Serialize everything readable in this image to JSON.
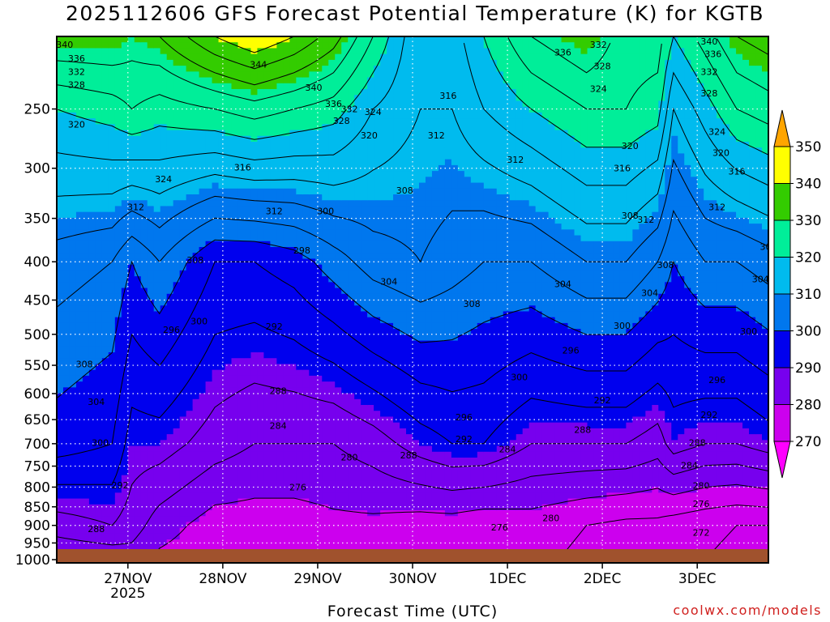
{
  "chart_data": {
    "type": "heatmap",
    "title": "2025112606 GFS Forecast Potential Temperature (K) for KGTB",
    "xlabel": "Forecast Time (UTC)",
    "ylabel": "",
    "x_ticks": [
      {
        "label": "27NOV",
        "sublabel": "2025",
        "hours": 18
      },
      {
        "label": "28NOV",
        "sublabel": "",
        "hours": 42
      },
      {
        "label": "29NOV",
        "sublabel": "",
        "hours": 66
      },
      {
        "label": "30NOV",
        "sublabel": "",
        "hours": 90
      },
      {
        "label": "1DEC",
        "sublabel": "",
        "hours": 114
      },
      {
        "label": "2DEC",
        "sublabel": "",
        "hours": 138
      },
      {
        "label": "3DEC",
        "sublabel": "",
        "hours": 162
      }
    ],
    "xlim_hours": [
      0,
      180
    ],
    "y_ticks": [
      "250",
      "300",
      "350",
      "400",
      "450",
      "500",
      "550",
      "600",
      "650",
      "700",
      "750",
      "800",
      "850",
      "900",
      "950",
      "1000"
    ],
    "y_tick_values": [
      250,
      300,
      350,
      400,
      450,
      500,
      550,
      600,
      650,
      700,
      750,
      800,
      850,
      900,
      950,
      1000
    ],
    "ylim_hpa": [
      1010,
      200
    ],
    "y_scale": "log",
    "grid": true,
    "colorbar": {
      "labels": [
        "350",
        "340",
        "330",
        "320",
        "310",
        "300",
        "290",
        "280",
        "270"
      ],
      "colors": [
        "#ffa500",
        "#ffff00",
        "#33cc00",
        "#00ee99",
        "#00bbee",
        "#0077ee",
        "#0000ee",
        "#7700ee",
        "#cc00ee",
        "#ff00ff"
      ],
      "min": 270,
      "max": 350,
      "step": 10,
      "extend": "both"
    },
    "contour_interval_K": 4,
    "profile_anchors_hours": [
      0,
      14,
      19,
      26,
      40,
      50,
      60,
      70,
      80,
      92,
      100,
      108,
      120,
      134,
      144,
      152,
      156,
      164,
      172,
      180
    ],
    "theta_at_1000hpa": [
      280,
      281,
      282,
      279,
      277,
      277,
      277,
      278,
      278,
      277,
      277,
      276,
      277,
      275,
      274,
      274,
      273,
      272,
      271,
      271
    ],
    "tropopause_theta_k": [
      332,
      332,
      330,
      332,
      340,
      344,
      340,
      334,
      324,
      312,
      314,
      320,
      328,
      332,
      326,
      326,
      320,
      326,
      332,
      334
    ],
    "theta_250hpa": [
      320,
      322,
      324,
      322,
      324,
      326,
      324,
      322,
      316,
      312,
      312,
      316,
      320,
      324,
      324,
      322,
      312,
      318,
      324,
      326
    ],
    "theta_400hpa": [
      306,
      304,
      300,
      304,
      296,
      296,
      298,
      302,
      306,
      308,
      306,
      304,
      304,
      308,
      308,
      304,
      300,
      304,
      304,
      306
    ],
    "theta_700hpa": [
      298,
      296,
      290,
      290,
      286,
      284,
      284,
      284,
      286,
      290,
      292,
      292,
      288,
      288,
      288,
      286,
      290,
      288,
      288,
      290
    ],
    "theta_900hpa": [
      286,
      288,
      286,
      282,
      278,
      276,
      276,
      276,
      276,
      276,
      276,
      276,
      278,
      276,
      274,
      274,
      274,
      272,
      272,
      272
    ],
    "contour_labels": [
      {
        "text": "340",
        "hours": 2,
        "hpa": 205
      },
      {
        "text": "336",
        "hours": 5,
        "hpa": 214
      },
      {
        "text": "332",
        "hours": 5,
        "hpa": 223
      },
      {
        "text": "328",
        "hours": 5,
        "hpa": 232
      },
      {
        "text": "320",
        "hours": 5,
        "hpa": 262
      },
      {
        "text": "324",
        "hours": 27,
        "hpa": 310
      },
      {
        "text": "316",
        "hours": 47,
        "hpa": 299
      },
      {
        "text": "312",
        "hours": 20,
        "hpa": 338
      },
      {
        "text": "312",
        "hours": 55,
        "hpa": 342
      },
      {
        "text": "300",
        "hours": 68,
        "hpa": 342
      },
      {
        "text": "344",
        "hours": 51,
        "hpa": 218
      },
      {
        "text": "340",
        "hours": 65,
        "hpa": 234
      },
      {
        "text": "336",
        "hours": 70,
        "hpa": 246
      },
      {
        "text": "332",
        "hours": 74,
        "hpa": 250
      },
      {
        "text": "328",
        "hours": 72,
        "hpa": 259
      },
      {
        "text": "324",
        "hours": 80,
        "hpa": 252
      },
      {
        "text": "320",
        "hours": 79,
        "hpa": 271
      },
      {
        "text": "316",
        "hours": 99,
        "hpa": 240
      },
      {
        "text": "312",
        "hours": 96,
        "hpa": 271
      },
      {
        "text": "312",
        "hours": 116,
        "hpa": 292
      },
      {
        "text": "308",
        "hours": 88,
        "hpa": 321
      },
      {
        "text": "308",
        "hours": 35,
        "hpa": 398
      },
      {
        "text": "298",
        "hours": 62,
        "hpa": 386
      },
      {
        "text": "304",
        "hours": 84,
        "hpa": 425
      },
      {
        "text": "300",
        "hours": 36,
        "hpa": 480
      },
      {
        "text": "296",
        "hours": 29,
        "hpa": 493
      },
      {
        "text": "292",
        "hours": 55,
        "hpa": 488
      },
      {
        "text": "308",
        "hours": 105,
        "hpa": 455
      },
      {
        "text": "300",
        "hours": 117,
        "hpa": 570
      },
      {
        "text": "304",
        "hours": 128,
        "hpa": 428
      },
      {
        "text": "308",
        "hours": 145,
        "hpa": 347
      },
      {
        "text": "336",
        "hours": 128,
        "hpa": 210
      },
      {
        "text": "332",
        "hours": 137,
        "hpa": 205
      },
      {
        "text": "328",
        "hours": 138,
        "hpa": 219
      },
      {
        "text": "324",
        "hours": 137,
        "hpa": 235
      },
      {
        "text": "320",
        "hours": 145,
        "hpa": 280
      },
      {
        "text": "316",
        "hours": 143,
        "hpa": 300
      },
      {
        "text": "312",
        "hours": 149,
        "hpa": 351
      },
      {
        "text": "308",
        "hours": 154,
        "hpa": 404
      },
      {
        "text": "304",
        "hours": 150,
        "hpa": 440
      },
      {
        "text": "300",
        "hours": 143,
        "hpa": 487
      },
      {
        "text": "296",
        "hours": 130,
        "hpa": 525
      },
      {
        "text": "292",
        "hours": 138,
        "hpa": 612
      },
      {
        "text": "288",
        "hours": 133,
        "hpa": 670
      },
      {
        "text": "284",
        "hours": 114,
        "hpa": 712
      },
      {
        "text": "288",
        "hours": 56,
        "hpa": 595
      },
      {
        "text": "284",
        "hours": 56,
        "hpa": 662
      },
      {
        "text": "296",
        "hours": 103,
        "hpa": 645
      },
      {
        "text": "292",
        "hours": 103,
        "hpa": 690
      },
      {
        "text": "288",
        "hours": 89,
        "hpa": 725
      },
      {
        "text": "280",
        "hours": 74,
        "hpa": 730
      },
      {
        "text": "276",
        "hours": 61,
        "hpa": 800
      },
      {
        "text": "276",
        "hours": 112,
        "hpa": 905
      },
      {
        "text": "280",
        "hours": 125,
        "hpa": 880
      },
      {
        "text": "288",
        "hours": 162,
        "hpa": 698
      },
      {
        "text": "284",
        "hours": 160,
        "hpa": 748
      },
      {
        "text": "280",
        "hours": 163,
        "hpa": 796
      },
      {
        "text": "276",
        "hours": 163,
        "hpa": 842
      },
      {
        "text": "272",
        "hours": 163,
        "hpa": 920
      },
      {
        "text": "340",
        "hours": 165,
        "hpa": 203
      },
      {
        "text": "336",
        "hours": 166,
        "hpa": 211
      },
      {
        "text": "332",
        "hours": 165,
        "hpa": 223
      },
      {
        "text": "328",
        "hours": 165,
        "hpa": 238
      },
      {
        "text": "324",
        "hours": 167,
        "hpa": 268
      },
      {
        "text": "320",
        "hours": 168,
        "hpa": 286
      },
      {
        "text": "316",
        "hours": 172,
        "hpa": 303
      },
      {
        "text": "312",
        "hours": 167,
        "hpa": 338
      },
      {
        "text": "308",
        "hours": 180,
        "hpa": 382
      },
      {
        "text": "304",
        "hours": 178,
        "hpa": 422
      },
      {
        "text": "300",
        "hours": 175,
        "hpa": 495
      },
      {
        "text": "296",
        "hours": 167,
        "hpa": 575
      },
      {
        "text": "292",
        "hours": 165,
        "hpa": 640
      },
      {
        "text": "308",
        "hours": 7,
        "hpa": 548
      },
      {
        "text": "304",
        "hours": 10,
        "hpa": 615
      },
      {
        "text": "300",
        "hours": 11,
        "hpa": 698
      },
      {
        "text": "292",
        "hours": 16,
        "hpa": 795
      },
      {
        "text": "288",
        "hours": 10,
        "hpa": 910
      }
    ]
  },
  "credit": "coolwx.com/models"
}
